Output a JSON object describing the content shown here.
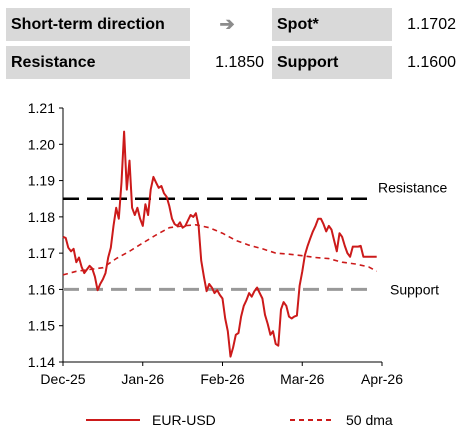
{
  "info_table": {
    "row1": {
      "label": "Short-term direction",
      "direction_icon": "right-arrow-icon",
      "spot_label": "Spot*",
      "spot_value": "1.1702"
    },
    "row2": {
      "label": "Resistance",
      "resistance_value": "1.1850",
      "support_label": "Support",
      "support_value": "1.1600"
    }
  },
  "chart_data": {
    "type": "line",
    "x_ticks": [
      "Dec-25",
      "Jan-26",
      "Feb-26",
      "Mar-26",
      "Apr-26"
    ],
    "y_ticks": [
      "1.21",
      "1.20",
      "1.19",
      "1.18",
      "1.17",
      "1.16",
      "1.15",
      "1.14"
    ],
    "ylim": [
      1.14,
      1.21
    ],
    "xlim": [
      0,
      120
    ],
    "colors": {
      "eur_usd": "#cc1a1a",
      "dma": "#cc1a1a",
      "resistance": "#000000",
      "support": "#999999"
    },
    "levels": {
      "resistance": {
        "value": 1.185,
        "label": "Resistance"
      },
      "support": {
        "value": 1.16,
        "label": "Support"
      }
    },
    "series": [
      {
        "name": "EUR-USD",
        "style": "solid",
        "x": [
          0,
          1,
          2,
          3,
          4,
          5,
          6,
          7,
          8,
          9,
          10,
          11,
          12,
          13,
          14,
          15,
          16,
          17,
          18,
          19,
          20,
          21,
          22,
          23,
          24,
          25,
          26,
          27,
          28,
          29,
          30,
          31,
          32,
          33,
          34,
          35,
          36,
          37,
          38,
          39,
          40,
          41,
          42,
          43,
          44,
          45,
          46,
          47,
          48,
          49,
          50,
          51,
          52,
          53,
          54,
          55,
          56,
          57,
          58,
          59,
          60,
          61,
          62,
          63,
          64,
          65,
          66,
          67,
          68,
          69,
          70,
          71,
          72,
          73,
          74,
          75,
          76,
          77,
          78,
          79,
          80,
          81,
          82,
          83,
          84,
          85,
          86,
          87,
          88,
          89,
          90,
          91,
          92,
          93,
          94,
          95,
          96,
          97,
          98,
          99,
          100,
          101,
          102,
          103,
          104,
          105,
          106,
          107,
          108,
          109,
          110,
          111,
          112,
          113,
          114,
          115,
          116,
          117,
          118
        ],
        "values": [
          1.1745,
          1.1742,
          1.1715,
          1.1705,
          1.1712,
          1.1675,
          1.1688,
          1.1662,
          1.1645,
          1.1655,
          1.1665,
          1.1658,
          1.1635,
          1.1598,
          1.1615,
          1.1628,
          1.1645,
          1.1688,
          1.1715,
          1.1775,
          1.1825,
          1.1795,
          1.1895,
          1.2035,
          1.1875,
          1.1955,
          1.1825,
          1.1805,
          1.1825,
          1.1795,
          1.1775,
          1.1835,
          1.1805,
          1.1875,
          1.191,
          1.1895,
          1.188,
          1.1885,
          1.1865,
          1.1855,
          1.183,
          1.1795,
          1.178,
          1.1775,
          1.1785,
          1.177,
          1.1775,
          1.179,
          1.1805,
          1.18,
          1.181,
          1.1775,
          1.168,
          1.1635,
          1.1595,
          1.1615,
          1.1605,
          1.159,
          1.1598,
          1.1585,
          1.1575,
          1.152,
          1.1485,
          1.1415,
          1.144,
          1.1475,
          1.148,
          1.1525,
          1.1555,
          1.157,
          1.159,
          1.158,
          1.1595,
          1.1605,
          1.159,
          1.1575,
          1.153,
          1.1505,
          1.1475,
          1.1485,
          1.145,
          1.1445,
          1.1545,
          1.1565,
          1.1555,
          1.1525,
          1.152,
          1.1525,
          1.1528,
          1.161,
          1.165,
          1.1695,
          1.172,
          1.174,
          1.176,
          1.1775,
          1.1795,
          1.1795,
          1.178,
          1.176,
          1.1775,
          1.1765,
          1.1735,
          1.1705,
          1.1755,
          1.1745,
          1.172,
          1.17,
          1.169,
          1.1718,
          1.1718,
          1.1718,
          1.172,
          1.169,
          1.169,
          1.169,
          1.169,
          1.169,
          1.169
        ]
      },
      {
        "name": "50 dma",
        "style": "dashed",
        "x": [
          0,
          5,
          10,
          15,
          20,
          25,
          30,
          35,
          40,
          45,
          50,
          55,
          60,
          65,
          70,
          75,
          80,
          85,
          90,
          95,
          100,
          105,
          110,
          115,
          118
        ],
        "values": [
          1.164,
          1.165,
          1.1655,
          1.166,
          1.1685,
          1.1705,
          1.1728,
          1.175,
          1.177,
          1.1775,
          1.1778,
          1.177,
          1.1755,
          1.1735,
          1.1722,
          1.1712,
          1.17,
          1.1697,
          1.1693,
          1.1688,
          1.1685,
          1.1675,
          1.167,
          1.1662,
          1.165
        ]
      }
    ],
    "legend": {
      "position": "bottom"
    }
  }
}
